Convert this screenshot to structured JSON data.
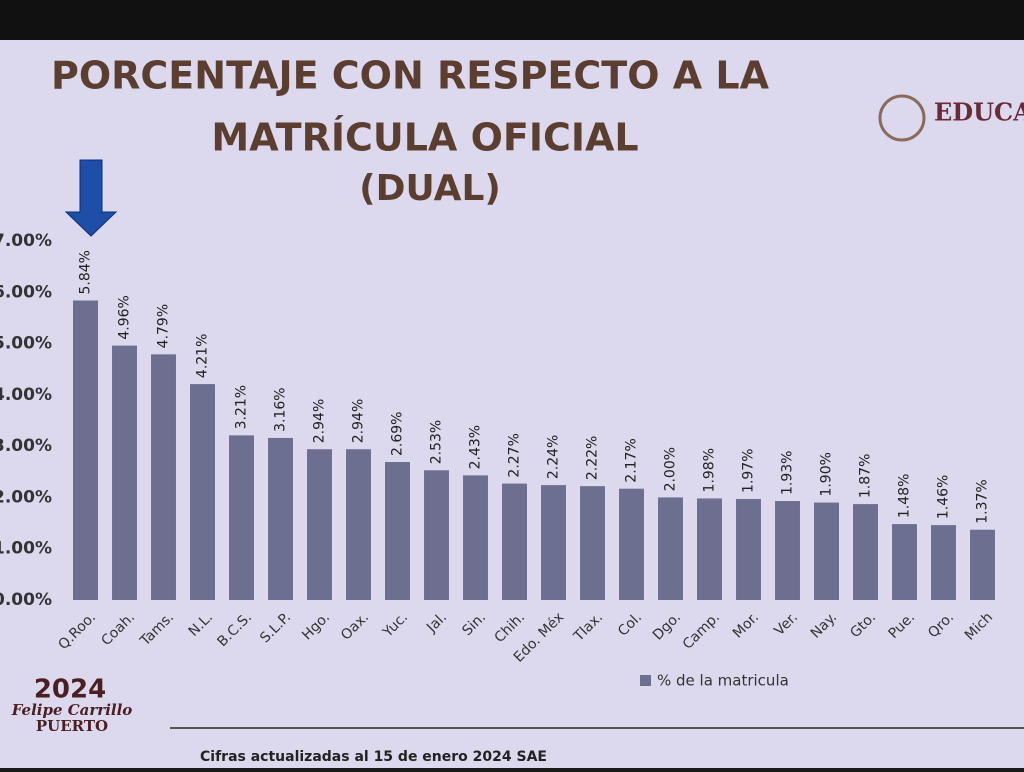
{
  "chart_data": {
    "type": "bar",
    "title_lines": [
      "PORCENTAJE CON RESPECTO A LA",
      "MATRÍCULA OFICIAL",
      "(DUAL)"
    ],
    "categories": [
      "Q.Roo.",
      "Coah.",
      "Tams.",
      "N.L.",
      "B.C.S.",
      "S.L.P.",
      "Hgo.",
      "Oax.",
      "Yuc.",
      "Jal.",
      "Sin.",
      "Chih.",
      "Edo. Méx",
      "Tlax.",
      "Col.",
      "Dgo.",
      "Camp.",
      "Mor.",
      "Ver.",
      "Nay.",
      "Gto.",
      "Pue.",
      "Qro.",
      "Mich"
    ],
    "series": [
      {
        "name": "% de la matricula",
        "color": "#6c6f8f",
        "values": [
          5.84,
          4.96,
          4.79,
          4.21,
          3.21,
          3.16,
          2.94,
          2.94,
          2.69,
          2.53,
          2.43,
          2.27,
          2.24,
          2.22,
          2.17,
          2.0,
          1.98,
          1.97,
          1.93,
          1.9,
          1.87,
          1.48,
          1.46,
          1.37
        ],
        "value_labels": [
          "5.84%",
          "4.96%",
          "4.79%",
          "4.21%",
          "3.21%",
          "3.16%",
          "2.94%",
          "2.94%",
          "2.69%",
          "2.53%",
          "2.43%",
          "2.27%",
          "2.24%",
          "2.22%",
          "2.17%",
          "2.00%",
          "1.98%",
          "1.97%",
          "1.93%",
          "1.90%",
          "1.87%",
          "1.48%",
          "1.46%",
          "1.37%"
        ]
      }
    ],
    "ylim": [
      0,
      7
    ],
    "yticks": [
      {
        "value": 0,
        "label": "0.00%"
      },
      {
        "value": 1,
        "label": "1.00%"
      },
      {
        "value": 2,
        "label": "2.00%"
      },
      {
        "value": 3,
        "label": "3.00%"
      },
      {
        "value": 4,
        "label": "4.00%"
      },
      {
        "value": 5,
        "label": "5.00%"
      },
      {
        "value": 6,
        "label": "6.00%"
      },
      {
        "value": 7,
        "label": "7.00%"
      }
    ],
    "grid": false,
    "legend": "bottom",
    "footnote": "Cifras actualizadas al 15 de enero 2024 SAE"
  },
  "branding": {
    "logo_text": "EDUCA",
    "event_year": "2024",
    "event_line1": "Felipe Carrillo",
    "event_line2": "PUERTO"
  }
}
